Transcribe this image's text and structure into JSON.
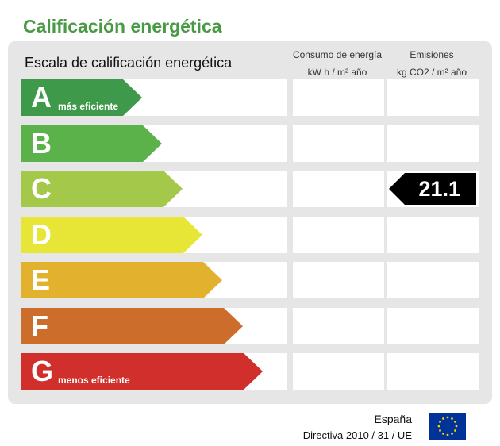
{
  "title": "Calificación energética",
  "scale_heading": "Escala de calificación energética",
  "columns": {
    "consumption": {
      "line1": "Consumo de energía",
      "line2": "kW h / m² año"
    },
    "emissions": {
      "line1": "Emisiones",
      "line2": "kg CO2 / m² año"
    }
  },
  "grades": [
    {
      "letter": "A",
      "sublabel": "más eficiente",
      "color": "#3e9a4a"
    },
    {
      "letter": "B",
      "sublabel": "",
      "color": "#5cb24a"
    },
    {
      "letter": "C",
      "sublabel": "",
      "color": "#a3c84a"
    },
    {
      "letter": "D",
      "sublabel": "",
      "color": "#e7e636"
    },
    {
      "letter": "E",
      "sublabel": "",
      "color": "#e2b22f"
    },
    {
      "letter": "F",
      "sublabel": "",
      "color": "#cc6d2c"
    },
    {
      "letter": "G",
      "sublabel": "menos eficiente",
      "color": "#d02f2b"
    }
  ],
  "emissions_rating": {
    "grade": "C",
    "value": "21.1"
  },
  "consumption_rating": null,
  "footer": {
    "country": "España",
    "directive": "Directiva 2010 / 31 / UE",
    "flag_icon": "eu-flag-icon"
  }
}
